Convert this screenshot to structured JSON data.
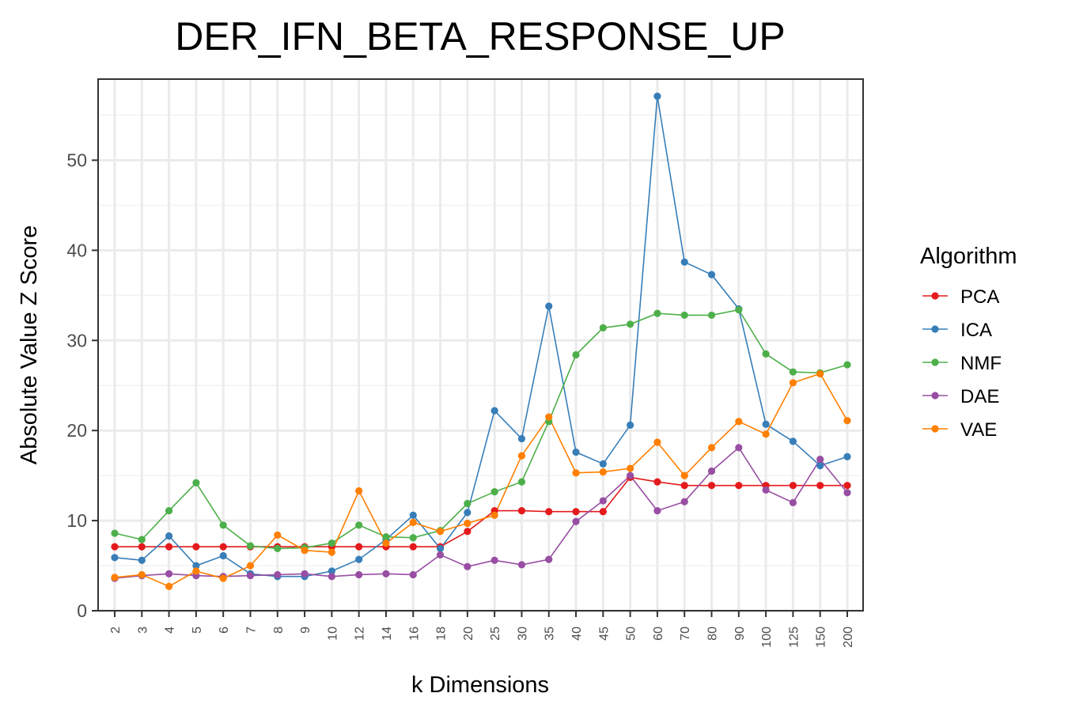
{
  "chart_data": {
    "type": "line",
    "title": "DER_IFN_BETA_RESPONSE_UP",
    "xlabel": "k Dimensions",
    "ylabel": "Absolute Value Z Score",
    "categories": [
      "2",
      "3",
      "4",
      "5",
      "6",
      "7",
      "8",
      "9",
      "10",
      "12",
      "14",
      "16",
      "18",
      "20",
      "25",
      "30",
      "35",
      "40",
      "45",
      "50",
      "60",
      "70",
      "80",
      "90",
      "100",
      "125",
      "150",
      "200"
    ],
    "yticks": [
      0,
      10,
      20,
      30,
      40,
      50
    ],
    "ylim": [
      0,
      59
    ],
    "grid": true,
    "legend": {
      "title": "Algorithm",
      "position": "right"
    },
    "series": [
      {
        "name": "PCA",
        "color": "#e41a1c",
        "values": [
          7.1,
          7.1,
          7.1,
          7.1,
          7.1,
          7.1,
          7.1,
          7.1,
          7.1,
          7.1,
          7.1,
          7.1,
          7.1,
          8.8,
          11.1,
          11.1,
          11.0,
          11.0,
          11.0,
          14.8,
          14.3,
          13.9,
          13.9,
          13.9,
          13.9,
          13.9,
          13.9,
          13.9
        ]
      },
      {
        "name": "ICA",
        "color": "#377eb8",
        "values": [
          5.9,
          5.6,
          8.3,
          5.0,
          6.1,
          4.1,
          3.8,
          3.8,
          4.4,
          5.7,
          7.9,
          10.6,
          6.9,
          10.9,
          22.2,
          19.1,
          33.8,
          17.6,
          16.3,
          20.6,
          57.1,
          38.7,
          37.3,
          33.5,
          20.7,
          18.8,
          16.1,
          17.1
        ]
      },
      {
        "name": "NMF",
        "color": "#4daf4a",
        "values": [
          8.6,
          7.9,
          11.1,
          14.2,
          9.5,
          7.2,
          6.9,
          7.0,
          7.5,
          9.5,
          8.2,
          8.1,
          8.9,
          11.9,
          13.2,
          14.3,
          21.0,
          28.4,
          31.4,
          31.8,
          33.0,
          32.8,
          32.8,
          33.4,
          28.5,
          26.5,
          26.4,
          27.3
        ]
      },
      {
        "name": "DAE",
        "color": "#984ea3",
        "values": [
          3.6,
          3.9,
          4.1,
          3.9,
          3.8,
          3.9,
          4.0,
          4.1,
          3.8,
          4.0,
          4.1,
          4.0,
          6.2,
          4.9,
          5.6,
          5.1,
          5.7,
          9.9,
          12.2,
          15.0,
          11.1,
          12.1,
          15.5,
          18.1,
          13.4,
          12.0,
          16.8,
          13.1
        ]
      },
      {
        "name": "VAE",
        "color": "#ff7f00",
        "values": [
          3.7,
          4.0,
          2.7,
          4.4,
          3.6,
          5.0,
          8.4,
          6.7,
          6.5,
          13.3,
          7.5,
          9.8,
          8.8,
          9.7,
          10.6,
          17.2,
          21.5,
          15.3,
          15.4,
          15.8,
          18.7,
          15.0,
          18.1,
          21.0,
          19.6,
          25.3,
          26.3,
          21.1
        ]
      }
    ]
  }
}
